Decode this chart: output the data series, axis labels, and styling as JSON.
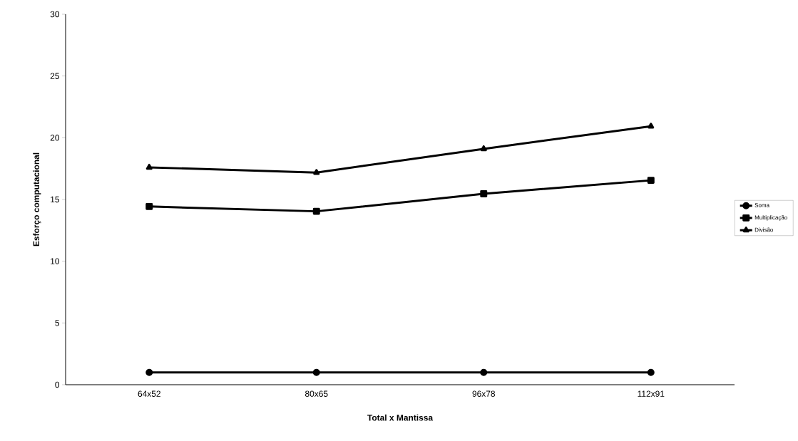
{
  "chart_data": {
    "type": "line",
    "xlabel": "Total x Mantissa",
    "ylabel": "Esforço computacional",
    "categories": [
      "64x52",
      "80x65",
      "96x78",
      "112x91"
    ],
    "series": [
      {
        "name": "Soma",
        "color": "#000000",
        "marker": "circle",
        "values": [
          1,
          1,
          1,
          1
        ]
      },
      {
        "name": "Multiplicação",
        "color": "#000000",
        "marker": "square",
        "values": [
          14.43,
          14.04,
          15.46,
          16.55
        ]
      },
      {
        "name": "Divisão",
        "color": "#000000",
        "marker": "triangle",
        "values": [
          17.6,
          17.18,
          19.1,
          20.93
        ]
      }
    ],
    "ylim": [
      0,
      30
    ],
    "yticks": [
      0,
      5,
      10,
      15,
      20,
      25,
      30
    ],
    "grid": false,
    "legend": "right",
    "line_style": "solid"
  }
}
